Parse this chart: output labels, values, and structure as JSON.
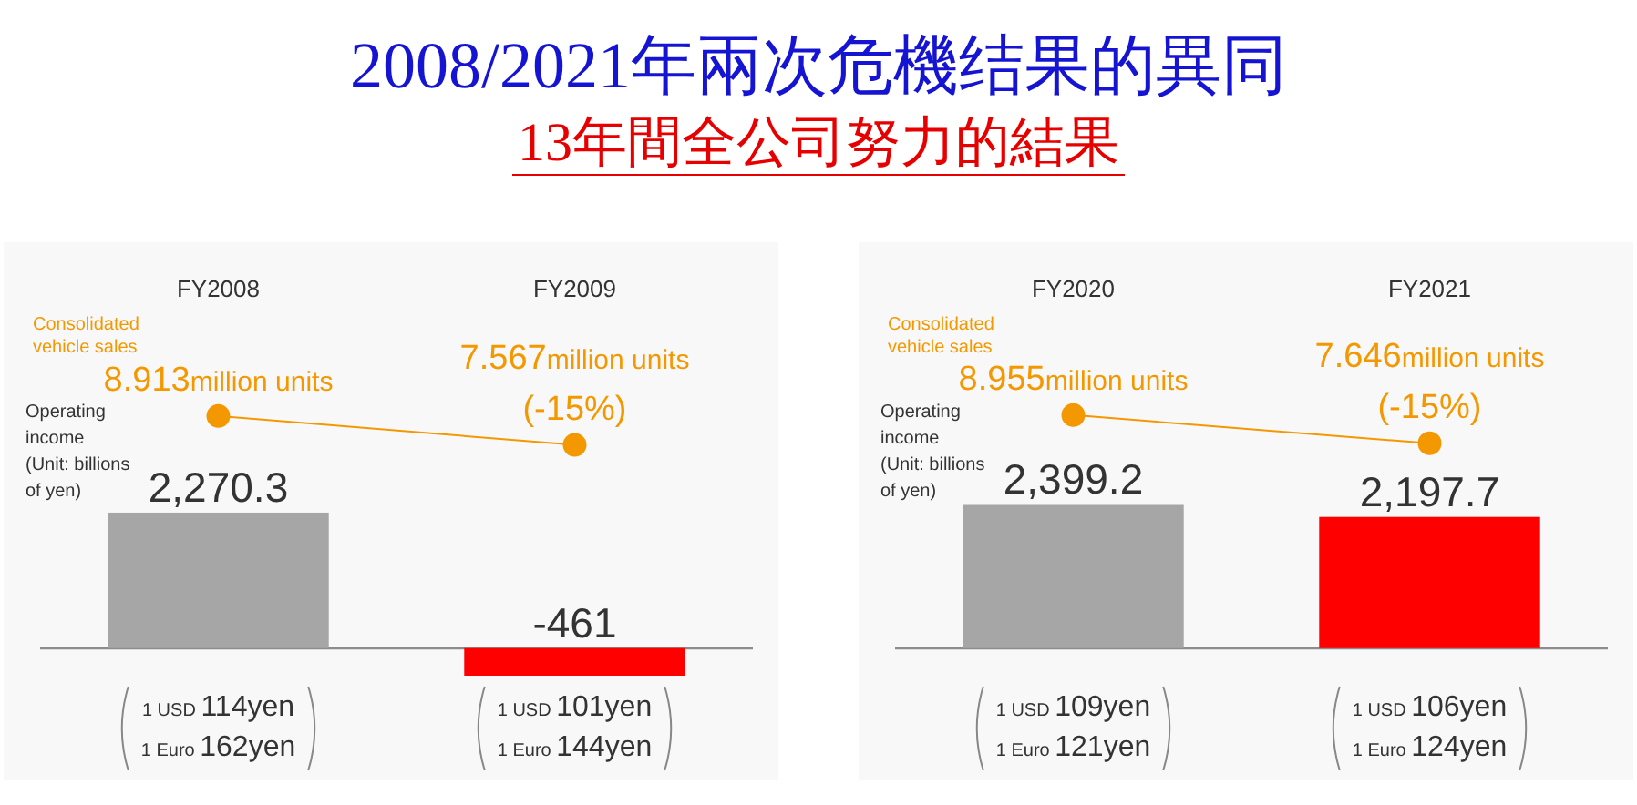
{
  "chart_data": [
    {
      "type": "bar",
      "title": "2008/2021年兩次危機结果的異同",
      "subtitle": "13年間全公司努力的結果",
      "y2label": "Operating income\n(Unit: billions of yen)",
      "categories": [
        "FY2008",
        "FY2009"
      ],
      "series": [
        {
          "axis": "y2",
          "values": [
            2270.3,
            -461
          ],
          "colors": [
            "#a6a6a6",
            "#ff0000"
          ],
          "value_labels": [
            "2,270.3",
            "-461"
          ]
        },
        {
          "name": "Consolidated vehicle sales",
          "type": "line",
          "color": "#f39800",
          "values": [
            8.913,
            7.567
          ],
          "value_labels": [
            "8.913million units",
            "7.567million units"
          ]
        }
      ],
      "ylim": [
        -8,
        17
      ],
      "y2lim": [
        -2200,
        6800
      ],
      "tick_labels": "x",
      "marker": "circle",
      "annotations": [
        {
          "text": "(-15%)",
          "x": "FY2009",
          "y": 7.567
        },
        "1 USD 114yen",
        "1 Euro 162yen",
        "1 USD 101yen",
        "1 Euro 144yen"
      ]
    },
    {
      "type": "bar",
      "y2label": "Operating income\n(Unit: billions of yen)",
      "categories": [
        "FY2020",
        "FY2021"
      ],
      "series": [
        {
          "axis": "y2",
          "values": [
            2399.2,
            2197.7
          ],
          "colors": [
            "#a6a6a6",
            "#ff0000"
          ],
          "value_labels": [
            "2,399.2",
            "2,197.7"
          ]
        },
        {
          "name": "Consolidated vehicle sales",
          "type": "line",
          "color": "#f39800",
          "values": [
            8.955,
            7.646
          ],
          "value_labels": [
            "8.955million units",
            "7.646million units"
          ]
        }
      ],
      "ylim": [
        -8,
        17
      ],
      "y2lim": [
        -2200,
        6800
      ],
      "tick_labels": "x",
      "marker": "circle",
      "annotations": [
        {
          "text": "(-15%)",
          "x": "FY2021",
          "y": 7.646
        },
        "1 USD 109yen",
        "1 Euro 121yen",
        "1 USD 106yen",
        "1 Euro 124yen"
      ]
    }
  ]
}
